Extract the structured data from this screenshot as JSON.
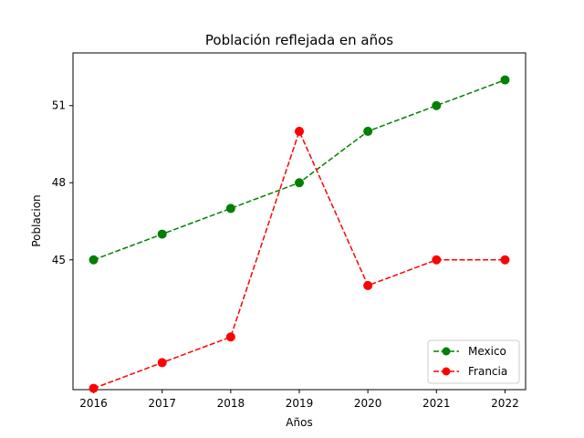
{
  "chart_data": {
    "type": "line",
    "title": "Población reflejada en años",
    "xlabel": "Años",
    "ylabel": "Poblacion",
    "x": [
      2016,
      2017,
      2018,
      2019,
      2020,
      2021,
      2022
    ],
    "xticks": [
      "2016",
      "2017",
      "2018",
      "2019",
      "2020",
      "2021",
      "2022"
    ],
    "yticks": [
      45,
      48,
      51
    ],
    "ytick_labels": [
      "45",
      "48",
      "51"
    ],
    "xlim": [
      2015.7,
      2022.3
    ],
    "ylim": [
      39.95,
      53.05
    ],
    "grid": false,
    "legend": {
      "placement": "lower-right"
    },
    "series": [
      {
        "name": "Mexico",
        "color": "#008000",
        "linestyle": "dashed",
        "marker": "circle",
        "values": [
          45,
          46,
          47,
          48,
          50,
          51,
          52
        ]
      },
      {
        "name": "Francia",
        "color": "#ff0000",
        "linestyle": "dashed",
        "marker": "circle",
        "values": [
          40,
          41,
          42,
          50,
          44,
          45,
          45
        ]
      }
    ]
  }
}
